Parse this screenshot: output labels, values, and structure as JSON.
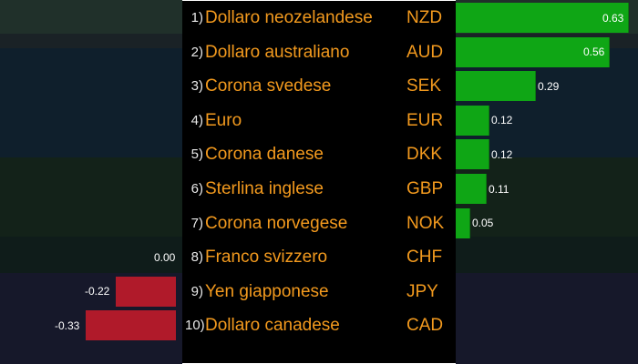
{
  "chart_data": {
    "type": "bar",
    "orientation": "horizontal",
    "categories": [
      {
        "rank": "1",
        "name": "Dollaro neozelandese",
        "code": "NZD"
      },
      {
        "rank": "2",
        "name": "Dollaro australiano",
        "code": "AUD"
      },
      {
        "rank": "3",
        "name": "Corona svedese",
        "code": "SEK"
      },
      {
        "rank": "4",
        "name": "Euro",
        "code": "EUR"
      },
      {
        "rank": "5",
        "name": "Corona danese",
        "code": "DKK"
      },
      {
        "rank": "6",
        "name": "Sterlina inglese",
        "code": "GBP"
      },
      {
        "rank": "7",
        "name": "Corona norvegese",
        "code": "NOK"
      },
      {
        "rank": "8",
        "name": "Franco svizzero",
        "code": "CHF"
      },
      {
        "rank": "9",
        "name": "Yen giapponese",
        "code": "JPY"
      },
      {
        "rank": "10",
        "name": "Dollaro canadese",
        "code": "CAD"
      }
    ],
    "values": [
      0.63,
      0.56,
      0.29,
      0.12,
      0.12,
      0.11,
      0.05,
      0.0,
      -0.22,
      -0.33
    ],
    "value_labels": [
      "0.63",
      "0.56",
      "0.29",
      "0.12",
      "0.12",
      "0.11",
      "0.05",
      "0.00",
      "-0.22",
      "-0.33"
    ],
    "positive_color": "#0fa615",
    "negative_color": "#b01a2a",
    "label_color": "#f39a1e",
    "title": "",
    "xlabel": "",
    "ylabel": "",
    "legend": "none",
    "grid": false
  }
}
